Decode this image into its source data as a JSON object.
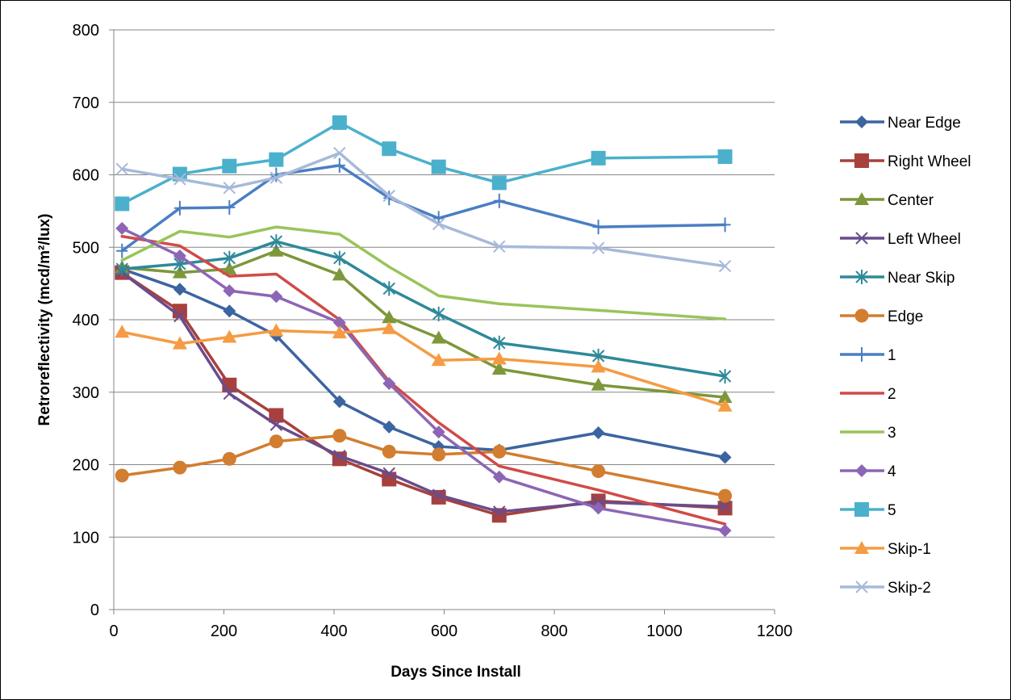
{
  "chart_data": {
    "type": "line",
    "title": "",
    "xlabel": "Days Since Install",
    "ylabel": "Retroreflectivity (mcd/m²/lux)",
    "xlim": [
      0,
      1200
    ],
    "ylim": [
      0,
      800
    ],
    "x_ticks": [
      0,
      200,
      400,
      600,
      800,
      1000,
      1200
    ],
    "y_ticks": [
      0,
      100,
      200,
      300,
      400,
      500,
      600,
      700,
      800
    ],
    "grid": "horizontal",
    "legend_position": "right",
    "x": [
      15,
      120,
      210,
      295,
      410,
      500,
      590,
      700,
      880,
      1110
    ],
    "series": [
      {
        "name": "Near Edge",
        "color": "#3C64A0",
        "marker": "diamond",
        "values": [
          470,
          442,
          412,
          378,
          287,
          252,
          225,
          220,
          244,
          210
        ]
      },
      {
        "name": "Right Wheel",
        "color": "#A8403D",
        "marker": "square",
        "values": [
          465,
          412,
          310,
          268,
          208,
          180,
          155,
          130,
          150,
          140
        ]
      },
      {
        "name": "Center",
        "color": "#7D973A",
        "marker": "triangle",
        "values": [
          472,
          465,
          470,
          495,
          462,
          403,
          375,
          332,
          310,
          293
        ]
      },
      {
        "name": "Left Wheel",
        "color": "#694C8C",
        "marker": "x",
        "values": [
          465,
          405,
          298,
          255,
          212,
          188,
          158,
          135,
          148,
          142
        ]
      },
      {
        "name": "Near Skip",
        "color": "#2E8999",
        "marker": "star",
        "values": [
          470,
          477,
          485,
          508,
          485,
          443,
          408,
          368,
          350,
          322
        ]
      },
      {
        "name": "Edge",
        "color": "#D27D2F",
        "marker": "circle",
        "values": [
          185,
          196,
          208,
          232,
          240,
          218,
          214,
          218,
          191,
          157
        ]
      },
      {
        "name": "1",
        "color": "#4A7EC4",
        "marker": "plus",
        "values": [
          495,
          554,
          555,
          600,
          613,
          568,
          540,
          564,
          528,
          531
        ]
      },
      {
        "name": "2",
        "color": "#D04B48",
        "marker": "none",
        "values": [
          515,
          502,
          460,
          463,
          400,
          315,
          258,
          198,
          165,
          118
        ]
      },
      {
        "name": "3",
        "color": "#99C45A",
        "marker": "none",
        "values": [
          482,
          522,
          514,
          528,
          518,
          473,
          433,
          422,
          413,
          401
        ]
      },
      {
        "name": "4",
        "color": "#8C66B5",
        "marker": "diamond",
        "values": [
          526,
          488,
          440,
          432,
          396,
          312,
          245,
          183,
          140,
          109
        ]
      },
      {
        "name": "5",
        "color": "#4BB0CC",
        "marker": "square",
        "values": [
          560,
          601,
          612,
          621,
          672,
          636,
          611,
          589,
          623,
          625
        ]
      },
      {
        "name": "Skip-1",
        "color": "#F59B43",
        "marker": "triangle",
        "values": [
          383,
          367,
          376,
          385,
          382,
          388,
          344,
          346,
          335,
          281
        ]
      },
      {
        "name": "Skip-2",
        "color": "#A7B9D9",
        "marker": "x",
        "values": [
          608,
          594,
          582,
          596,
          630,
          571,
          532,
          501,
          499,
          474
        ]
      }
    ]
  }
}
